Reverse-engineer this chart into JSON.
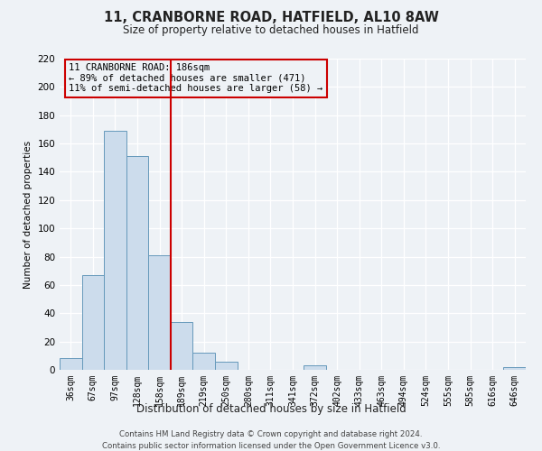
{
  "title": "11, CRANBORNE ROAD, HATFIELD, AL10 8AW",
  "subtitle": "Size of property relative to detached houses in Hatfield",
  "xlabel": "Distribution of detached houses by size in Hatfield",
  "ylabel": "Number of detached properties",
  "bar_labels": [
    "36sqm",
    "67sqm",
    "97sqm",
    "128sqm",
    "158sqm",
    "189sqm",
    "219sqm",
    "250sqm",
    "280sqm",
    "311sqm",
    "341sqm",
    "372sqm",
    "402sqm",
    "433sqm",
    "463sqm",
    "494sqm",
    "524sqm",
    "555sqm",
    "585sqm",
    "616sqm",
    "646sqm"
  ],
  "bar_values": [
    8,
    67,
    169,
    151,
    81,
    34,
    12,
    6,
    0,
    0,
    0,
    3,
    0,
    0,
    0,
    0,
    0,
    0,
    0,
    0,
    2
  ],
  "bar_color": "#ccdcec",
  "bar_edgecolor": "#6699bb",
  "vline_index": 5,
  "vline_color": "#cc0000",
  "annotation_line1": "11 CRANBORNE ROAD: 186sqm",
  "annotation_line2": "← 89% of detached houses are smaller (471)",
  "annotation_line3": "11% of semi-detached houses are larger (58) →",
  "annotation_box_edgecolor": "#cc0000",
  "ylim": [
    0,
    220
  ],
  "yticks": [
    0,
    20,
    40,
    60,
    80,
    100,
    120,
    140,
    160,
    180,
    200,
    220
  ],
  "footer_line1": "Contains HM Land Registry data © Crown copyright and database right 2024.",
  "footer_line2": "Contains public sector information licensed under the Open Government Licence v3.0.",
  "bg_color": "#eef2f6",
  "grid_color": "#ffffff"
}
